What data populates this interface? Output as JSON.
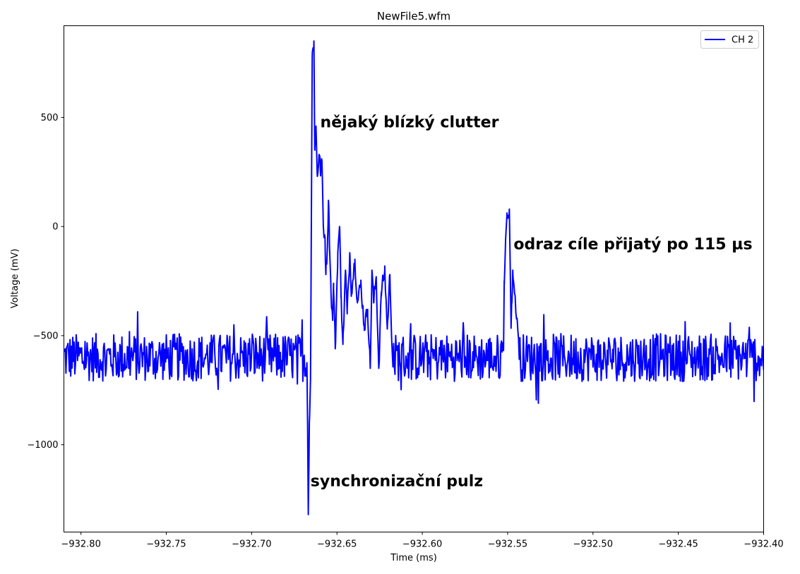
{
  "chart_data": {
    "type": "line",
    "title": "NewFile5.wfm",
    "xlabel": "Time (ms)",
    "ylabel": "Voltage (mV)",
    "xlim": [
      -932.81,
      -932.4
    ],
    "ylim": [
      -1400,
      920
    ],
    "xticks": [
      -932.8,
      -932.75,
      -932.7,
      -932.65,
      -932.6,
      -932.55,
      -932.5,
      -932.45,
      -932.4
    ],
    "xtick_labels": [
      "−932.80",
      "−932.75",
      "−932.70",
      "−932.65",
      "−932.60",
      "−932.55",
      "−932.50",
      "−932.45",
      "−932.40"
    ],
    "yticks": [
      500,
      0,
      -500,
      -1000
    ],
    "ytick_labels": [
      "500",
      "0",
      "−500",
      "−1000"
    ],
    "grid": false,
    "legend": {
      "position": "top-right",
      "entries": [
        "CH 2"
      ]
    },
    "series": [
      {
        "name": "CH 2",
        "color": "#0000ff",
        "baseline": -600,
        "noise_amplitude": 110,
        "sample_step": 0.0004,
        "key_points": [
          [
            -932.81,
            -600
          ],
          [
            -932.6675,
            -600
          ],
          [
            -932.6668,
            -1320
          ],
          [
            -932.6662,
            -900
          ],
          [
            -932.6655,
            -700
          ],
          [
            -932.6645,
            780
          ],
          [
            -932.6635,
            850
          ],
          [
            -932.663,
            350
          ],
          [
            -932.6623,
            460
          ],
          [
            -932.6615,
            230
          ],
          [
            -932.6605,
            330
          ],
          [
            -932.6595,
            250
          ],
          [
            -932.659,
            310
          ],
          [
            -932.6585,
            200
          ],
          [
            -932.658,
            0
          ],
          [
            -932.657,
            -50
          ],
          [
            -932.6565,
            -220
          ],
          [
            -932.6555,
            -60
          ],
          [
            -932.655,
            120
          ],
          [
            -932.6545,
            -20
          ],
          [
            -932.6535,
            -300
          ],
          [
            -932.6525,
            -430
          ],
          [
            -932.652,
            -260
          ],
          [
            -932.651,
            -560
          ],
          [
            -932.6495,
            -120
          ],
          [
            -932.6485,
            0
          ],
          [
            -932.6475,
            -330
          ],
          [
            -932.6465,
            -540
          ],
          [
            -932.645,
            -200
          ],
          [
            -932.644,
            -400
          ],
          [
            -932.6425,
            -120
          ],
          [
            -932.6415,
            -300
          ],
          [
            -932.6395,
            -150
          ],
          [
            -932.638,
            -350
          ],
          [
            -932.636,
            -260
          ],
          [
            -932.634,
            -460
          ],
          [
            -932.632,
            -380
          ],
          [
            -932.6305,
            -650
          ],
          [
            -932.6295,
            -200
          ],
          [
            -932.6285,
            -350
          ],
          [
            -932.627,
            -230
          ],
          [
            -932.6255,
            -650
          ],
          [
            -932.624,
            -300
          ],
          [
            -932.622,
            -200
          ],
          [
            -932.6205,
            -470
          ],
          [
            -932.619,
            -220
          ],
          [
            -932.6175,
            -600
          ],
          [
            -932.5525,
            -600
          ],
          [
            -932.552,
            -250
          ],
          [
            -932.5505,
            40
          ],
          [
            -932.549,
            80
          ],
          [
            -932.548,
            -450
          ],
          [
            -932.5475,
            -350
          ],
          [
            -932.547,
            -200
          ],
          [
            -932.546,
            -300
          ],
          [
            -932.5445,
            -420
          ],
          [
            -932.543,
            -600
          ],
          [
            -932.4,
            -600
          ]
        ]
      }
    ],
    "annotations": [
      {
        "text": "nějaký blízký clutter",
        "x": -932.6598,
        "y": 455
      },
      {
        "text": "odraz cíle přijatý po 115 µs",
        "x": -932.5465,
        "y": -105
      },
      {
        "text": "synchronizační pulz",
        "x": -932.6655,
        "y": -1190
      }
    ]
  }
}
